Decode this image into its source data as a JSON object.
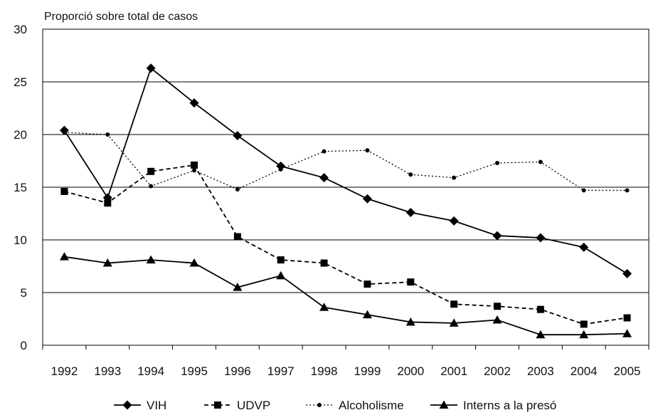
{
  "chart_data": {
    "type": "line",
    "title": "",
    "ylabel": "Proporció sobre total de casos",
    "xlabel": "",
    "categories": [
      "1992",
      "1993",
      "1994",
      "1995",
      "1996",
      "1997",
      "1998",
      "1999",
      "2000",
      "2001",
      "2002",
      "2003",
      "2004",
      "2005"
    ],
    "ylim": [
      0,
      30
    ],
    "yticks": [
      0,
      5,
      10,
      15,
      20,
      25,
      30
    ],
    "grid": "horizontal",
    "legend_position": "bottom",
    "series": [
      {
        "name": "VIH",
        "marker": "diamond",
        "line_style": "solid",
        "color": "#000000",
        "values": [
          20.4,
          14.0,
          26.3,
          23.0,
          19.9,
          17.0,
          15.9,
          13.9,
          12.6,
          11.8,
          10.4,
          10.2,
          9.3,
          6.8
        ]
      },
      {
        "name": "UDVP",
        "marker": "square",
        "line_style": "dashed",
        "color": "#000000",
        "values": [
          14.6,
          13.5,
          16.5,
          17.1,
          10.3,
          8.1,
          7.8,
          5.8,
          6.0,
          3.9,
          3.7,
          3.4,
          2.0,
          2.6
        ]
      },
      {
        "name": "Alcoholisme",
        "marker": "circle",
        "line_style": "dotted",
        "color": "#000000",
        "values": [
          20.2,
          20.0,
          15.1,
          16.6,
          14.8,
          16.7,
          18.4,
          18.5,
          16.2,
          15.9,
          17.3,
          17.4,
          14.7,
          14.7
        ]
      },
      {
        "name": "Interns a la presó",
        "marker": "triangle",
        "line_style": "solid",
        "color": "#000000",
        "values": [
          8.4,
          7.8,
          8.1,
          7.8,
          5.5,
          6.6,
          3.6,
          2.9,
          2.2,
          2.1,
          2.4,
          1.0,
          1.0,
          1.1
        ]
      }
    ]
  }
}
